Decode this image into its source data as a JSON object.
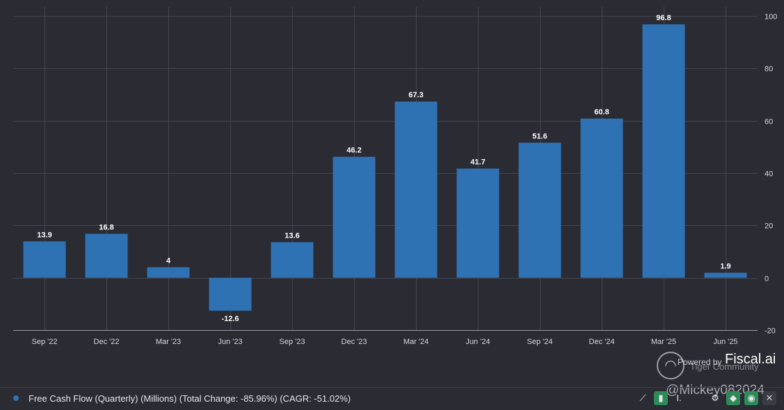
{
  "chart_data": {
    "type": "bar",
    "title": "Free Cash Flow (Quarterly) (Millions)",
    "categories": [
      "Sep '22",
      "Dec '22",
      "Mar '23",
      "Jun '23",
      "Sep '23",
      "Dec '23",
      "Mar '24",
      "Jun '24",
      "Sep '24",
      "Dec '24",
      "Mar '25",
      "Jun '25"
    ],
    "values": [
      13.9,
      16.8,
      4,
      -12.6,
      13.6,
      46.2,
      67.3,
      41.7,
      51.6,
      60.8,
      96.8,
      1.9
    ],
    "value_labels": [
      "13.9",
      "16.8",
      "4",
      "-12.6",
      "13.6",
      "46.2",
      "67.3",
      "41.7",
      "51.6",
      "60.8",
      "96.8",
      "1.9"
    ],
    "ylim": [
      -20,
      100
    ],
    "yticks": [
      -20,
      0,
      20,
      40,
      60,
      80,
      100
    ],
    "ytick_labels": [
      "-20",
      "0",
      "20",
      "40",
      "60",
      "80",
      "100"
    ],
    "y_axis_side": "right",
    "grid": true,
    "bar_color": "#2f72b4",
    "xlabel": "",
    "ylabel": ""
  },
  "legend": {
    "text": "Free Cash Flow (Quarterly) (Millions) (Total Change: -85.96%) (CAGR: -51.02%)",
    "color": "#2f72b4"
  },
  "watermark": {
    "powered": "Powered by",
    "brand": "Fiscal.ai",
    "community": "Tiger Community",
    "handle": "@Mickey082024"
  },
  "toolbar": {
    "icons": [
      "line-chart-icon",
      "bar-chart-icon",
      "text-icon",
      "gear-icon",
      "tag-icon",
      "eye-icon",
      "close-icon"
    ]
  },
  "colors": {
    "background": "#2a2b33",
    "accent": "#2e8b57"
  }
}
